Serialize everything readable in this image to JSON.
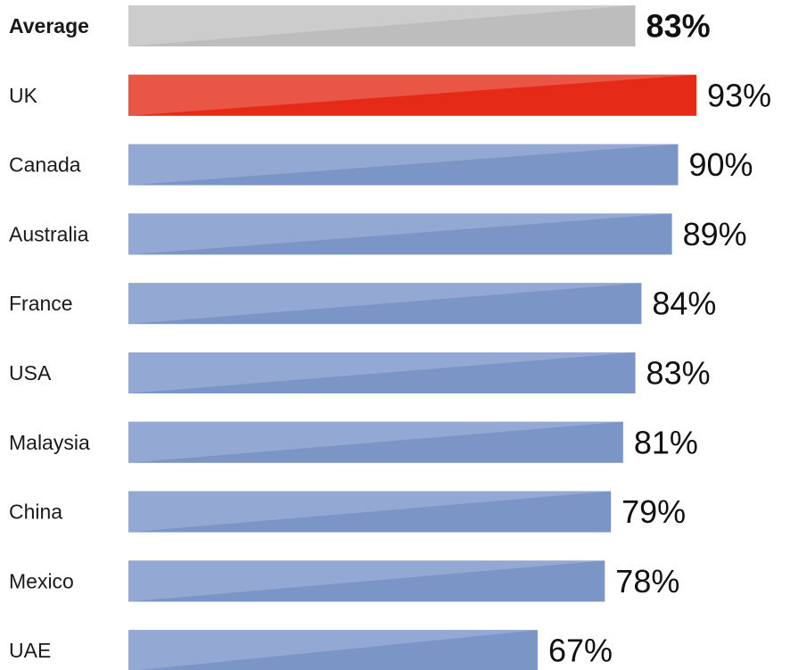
{
  "chart_data": {
    "type": "bar",
    "orientation": "horizontal",
    "categories": [
      "Average",
      "UK",
      "Canada",
      "Australia",
      "France",
      "USA",
      "Malaysia",
      "China",
      "Mexico",
      "UAE"
    ],
    "values": [
      83,
      93,
      90,
      89,
      84,
      83,
      81,
      79,
      78,
      67
    ],
    "value_labels": [
      "83%",
      "93%",
      "90%",
      "89%",
      "84%",
      "83%",
      "81%",
      "79%",
      "78%",
      "67%"
    ],
    "unit": "%",
    "title": "",
    "xlabel": "",
    "ylabel": "",
    "xlim": [
      0,
      100
    ],
    "grid": false,
    "legend": "none",
    "highlight": {
      "Average": "#bdbdbd",
      "UK": "#e62a18"
    },
    "colors": {
      "default_bar": "#7b95c6",
      "default_bar_light": "#93a9d3",
      "average_bar": "#bdbdbd",
      "average_bar_light": "#cccccc",
      "uk_bar": "#e62a18",
      "uk_bar_light": "#ea5646"
    }
  }
}
